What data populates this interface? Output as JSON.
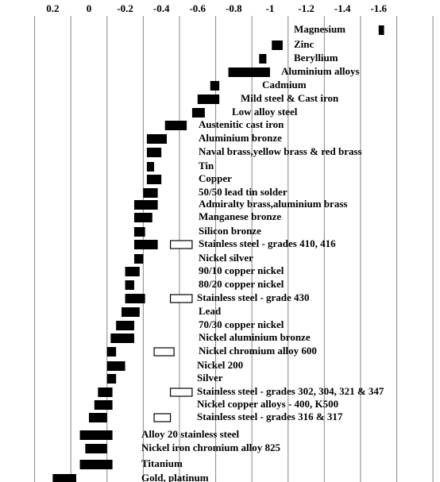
{
  "chart_data": {
    "type": "range_bar",
    "materials": [
      "Magnesium",
      "Zinc",
      "Beryllium",
      "Aluminium alloys",
      "Cadmium",
      "Mild steel & Cast iron",
      "Low alloy steel",
      "Austenitic cast iron",
      "Aluminium bronze",
      "Naval brass,yellow brass & red brass",
      "Tin",
      "Copper",
      "50/50 lead tin solder",
      "Admiralty brass,aluminium brass",
      "Manganese bronze",
      "Silicon bronze",
      "Stainless steel  - grades 410, 416",
      "Nickel silver",
      "90/10 copper nickel",
      "80/20 copper nickel",
      "Stainless steel  - grade 430",
      "Lead",
      "70/30 copper nickel",
      "Nickel aluminium bronze",
      "Nickel chromium alloy 600",
      "Nickel 200",
      "Silver",
      "Stainless steel - grades 302, 304, 321 & 347",
      "Nickel copper  alloys - 400, K500",
      "Stainless steel - grades  316 & 317",
      "Alloy 20 stainless steel",
      "Nickel iron chromium alloy 825",
      "Titanium",
      "Gold, platinum"
    ],
    "ranges": [
      [
        -1.6,
        -1.63
      ],
      [
        -1.01,
        -1.07
      ],
      [
        -0.94,
        -0.98
      ],
      [
        -0.77,
        -1.0
      ],
      [
        -0.67,
        -0.72
      ],
      [
        -0.6,
        -0.72
      ],
      [
        -0.57,
        -0.64
      ],
      [
        -0.42,
        -0.54
      ],
      [
        -0.32,
        -0.43
      ],
      [
        -0.32,
        -0.4
      ],
      [
        -0.32,
        -0.36
      ],
      [
        -0.32,
        -0.4
      ],
      [
        -0.3,
        -0.38
      ],
      [
        -0.25,
        -0.38
      ],
      [
        -0.25,
        -0.35
      ],
      [
        -0.25,
        -0.31
      ],
      [
        -0.25,
        -0.38
      ],
      [
        -0.25,
        -0.3
      ],
      [
        -0.2,
        -0.28
      ],
      [
        -0.2,
        -0.25
      ],
      [
        -0.2,
        -0.31
      ],
      [
        -0.18,
        -0.28
      ],
      [
        -0.15,
        -0.25
      ],
      [
        -0.12,
        -0.25
      ],
      [
        -0.1,
        -0.15
      ],
      [
        -0.1,
        -0.2
      ],
      [
        -0.1,
        -0.15
      ],
      [
        -0.05,
        -0.13
      ],
      [
        -0.03,
        -0.13
      ],
      [
        0.0,
        -0.1
      ],
      [
        0.05,
        -0.13
      ],
      [
        0.02,
        -0.1
      ],
      [
        0.05,
        -0.13
      ],
      [
        0.2,
        0.07
      ]
    ],
    "passive_ranges": [
      null,
      null,
      null,
      null,
      null,
      null,
      null,
      null,
      null,
      null,
      null,
      null,
      null,
      null,
      null,
      null,
      [
        -0.45,
        -0.57
      ],
      null,
      null,
      null,
      [
        -0.45,
        -0.57
      ],
      null,
      null,
      null,
      [
        -0.36,
        -0.47
      ],
      null,
      null,
      [
        -0.45,
        -0.57
      ],
      null,
      [
        -0.36,
        -0.45
      ],
      null,
      null,
      null,
      null
    ],
    "color": "#000000",
    "xlim": [
      0.32,
      -1.93
    ],
    "xticks": [
      0.2,
      0,
      -0.2,
      -0.4,
      -0.6,
      -0.8,
      -1.0,
      -1.2,
      -1.4,
      -1.6
    ],
    "xgrid": [
      0.3,
      0.1,
      -0.1,
      -0.3,
      -0.5,
      -0.7,
      -0.9,
      -1.1,
      -1.3,
      -1.5,
      -1.7,
      -1.9
    ]
  }
}
